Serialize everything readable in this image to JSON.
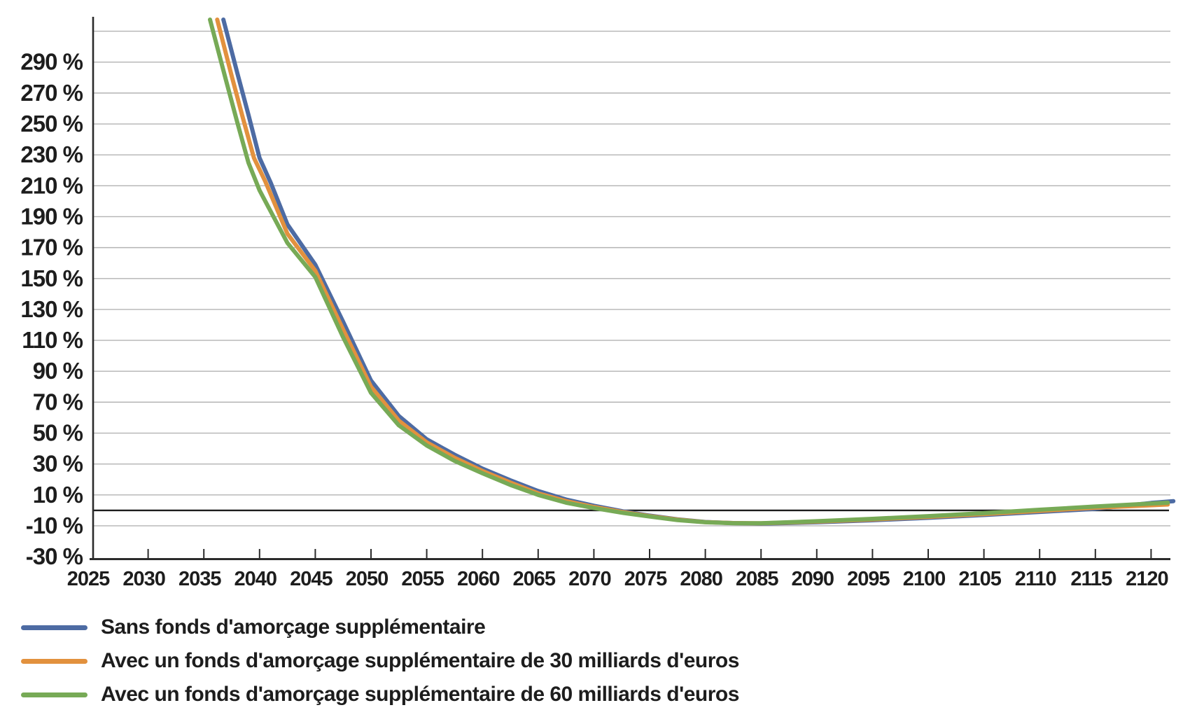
{
  "chart_data": {
    "type": "line",
    "title": "",
    "xlabel": "",
    "ylabel": "",
    "grid": "horizontal",
    "legend_position": "bottom-left",
    "zero_line": true,
    "xlim": [
      2025,
      2122
    ],
    "ylim": [
      -30,
      310
    ],
    "y_axis": {
      "labels": [
        "290 %",
        "270 %",
        "250 %",
        "230 %",
        "210 %",
        "190 %",
        "170 %",
        "150 %",
        "130 %",
        "110 %",
        "90 %",
        "70 %",
        "50 %",
        "30 %",
        "10 %",
        "-10 %",
        "-30 %"
      ],
      "values": [
        290,
        270,
        250,
        230,
        210,
        190,
        170,
        150,
        130,
        110,
        90,
        70,
        50,
        30,
        10,
        -10,
        -30
      ],
      "gridline_values": [
        310,
        290,
        270,
        250,
        230,
        210,
        190,
        170,
        150,
        130,
        110,
        90,
        70,
        50,
        30,
        10,
        -10
      ]
    },
    "x_axis": {
      "labels": [
        "2025",
        "2030",
        "2035",
        "2040",
        "2045",
        "2050",
        "2055",
        "2060",
        "2065",
        "2070",
        "2075",
        "2080",
        "2085",
        "2090",
        "2095",
        "2100",
        "2105",
        "2110",
        "2115",
        "2120"
      ],
      "values": [
        2025,
        2030,
        2035,
        2040,
        2045,
        2050,
        2055,
        2060,
        2065,
        2070,
        2075,
        2080,
        2085,
        2090,
        2095,
        2100,
        2105,
        2110,
        2115,
        2120
      ],
      "tick_values": [
        2030,
        2035,
        2040,
        2045,
        2050,
        2055,
        2060,
        2065,
        2070,
        2075,
        2080,
        2085,
        2090,
        2095,
        2100,
        2105,
        2110,
        2115,
        2120
      ]
    },
    "series": [
      {
        "name": "Sans fonds d'amorçage supplémentaire",
        "color": "#4d6ba3",
        "points": [
          [
            2036.75,
            317.5
          ],
          [
            2038,
            283
          ],
          [
            2039,
            256
          ],
          [
            2040,
            228
          ],
          [
            2041,
            212
          ],
          [
            2042.5,
            185
          ],
          [
            2045,
            159
          ],
          [
            2047.5,
            122
          ],
          [
            2050,
            84
          ],
          [
            2052.5,
            61
          ],
          [
            2055,
            46
          ],
          [
            2057.5,
            36
          ],
          [
            2060,
            27
          ],
          [
            2062.5,
            19.5
          ],
          [
            2065,
            12.5
          ],
          [
            2067.5,
            7
          ],
          [
            2070,
            3
          ],
          [
            2072.5,
            -0.5
          ],
          [
            2075,
            -3.4
          ],
          [
            2077.5,
            -5.8
          ],
          [
            2080,
            -7.5
          ],
          [
            2082.5,
            -8.2
          ],
          [
            2085,
            -8.6
          ],
          [
            2090,
            -7.7
          ],
          [
            2095,
            -6.4
          ],
          [
            2100,
            -4.8
          ],
          [
            2105,
            -3
          ],
          [
            2110,
            -1
          ],
          [
            2115,
            1
          ],
          [
            2120,
            4.8
          ],
          [
            2122,
            6
          ]
        ]
      },
      {
        "name": "Avec un fonds d'amorçage supplémentaire de 30 milliards d'euros",
        "color": "#e2913e",
        "points": [
          [
            2036.2,
            317.5
          ],
          [
            2037.5,
            281
          ],
          [
            2038.5,
            254
          ],
          [
            2039.5,
            228
          ],
          [
            2040.5,
            213
          ],
          [
            2042.5,
            179
          ],
          [
            2045,
            155
          ],
          [
            2047.5,
            117
          ],
          [
            2050,
            80
          ],
          [
            2052.5,
            58
          ],
          [
            2055,
            44
          ],
          [
            2057.5,
            34
          ],
          [
            2060,
            25.5
          ],
          [
            2062.5,
            18
          ],
          [
            2065,
            11
          ],
          [
            2067.5,
            6
          ],
          [
            2070,
            2.2
          ],
          [
            2072.5,
            -1
          ],
          [
            2075,
            -3.7
          ],
          [
            2077.5,
            -6
          ],
          [
            2080,
            -7.6
          ],
          [
            2082.5,
            -8.2
          ],
          [
            2085,
            -8.4
          ],
          [
            2090,
            -7.3
          ],
          [
            2095,
            -5.9
          ],
          [
            2100,
            -4.2
          ],
          [
            2105,
            -2.4
          ],
          [
            2110,
            -0.3
          ],
          [
            2115,
            1.7
          ],
          [
            2121.5,
            3.8
          ]
        ]
      },
      {
        "name": "Avec un fonds d'amorçage supplémentaire de 60 milliards d'euros",
        "color": "#77aa56",
        "points": [
          [
            2035.55,
            317.5
          ],
          [
            2037,
            278
          ],
          [
            2038,
            251
          ],
          [
            2039,
            225
          ],
          [
            2040,
            207
          ],
          [
            2042.5,
            173
          ],
          [
            2045,
            151
          ],
          [
            2047.5,
            112
          ],
          [
            2050,
            76
          ],
          [
            2052.5,
            55
          ],
          [
            2055,
            42
          ],
          [
            2057.5,
            32
          ],
          [
            2060,
            24
          ],
          [
            2062.5,
            16.5
          ],
          [
            2065,
            10
          ],
          [
            2067.5,
            5
          ],
          [
            2070,
            1.5
          ],
          [
            2072.5,
            -1.5
          ],
          [
            2075,
            -4
          ],
          [
            2077.5,
            -6.3
          ],
          [
            2080,
            -7.7
          ],
          [
            2082.5,
            -8.3
          ],
          [
            2085,
            -8.3
          ],
          [
            2090,
            -7
          ],
          [
            2095,
            -5.5
          ],
          [
            2100,
            -3.7
          ],
          [
            2105,
            -1.8
          ],
          [
            2110,
            0.4
          ],
          [
            2115,
            2.5
          ],
          [
            2121.5,
            5
          ]
        ]
      }
    ],
    "colors": {
      "gridline": "#b3b3b3",
      "axis": "#2b2b2b",
      "zero_line": "#1d1d1d",
      "text": "#1d1d1d"
    }
  }
}
